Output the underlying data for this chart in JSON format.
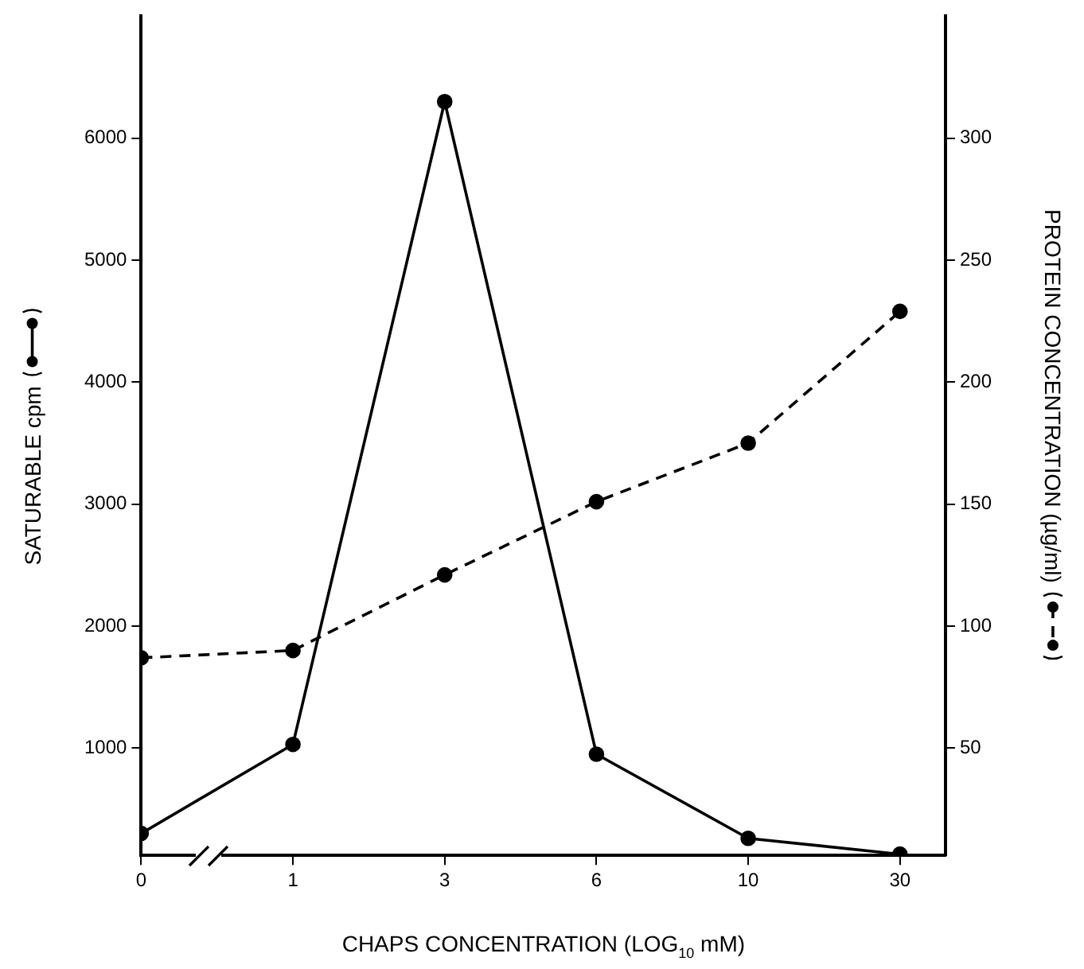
{
  "chart_data": {
    "type": "line",
    "xlabel": "CHAPS CONCENTRATION (LOG$_{10}$ mM)",
    "ylabel": "SATURABLE cpm",
    "y2label": "PROTEIN CONCENTRATION (µg/ml)",
    "categories": [
      "0",
      "1",
      "3",
      "6",
      "10",
      "30"
    ],
    "series": [
      {
        "color": "#000000",
        "values": [
          300,
          1030,
          6300,
          950,
          260,
          130
        ],
        "line_style": "solid"
      },
      {
        "color": "#000000",
        "values": [
          87,
          90,
          121,
          151,
          175,
          229
        ],
        "axis": "y2",
        "line_style": "dashed"
      }
    ],
    "marker": "circle",
    "ylim": [
      120,
      7000
    ],
    "yticks": [
      1000,
      2000,
      3000,
      4000,
      5000,
      6000
    ],
    "y2lim": [
      6,
      350
    ],
    "y2ticks": [
      50,
      100,
      150,
      200,
      250,
      300
    ]
  }
}
